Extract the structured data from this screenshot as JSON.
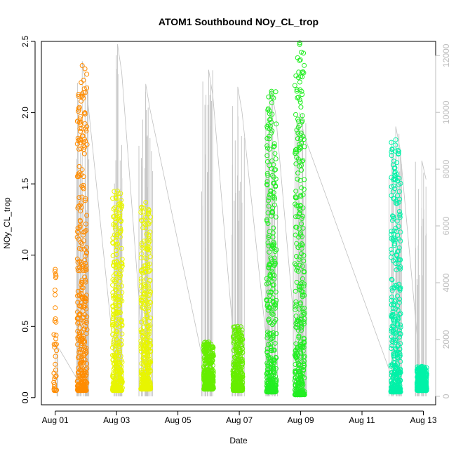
{
  "chart_data": {
    "type": "scatter",
    "title": "ATOM1 Southbound NOy_CL_trop",
    "xlabel": "Date",
    "ylabel": "NOy_CL_trop",
    "x_ticks": [
      "Aug 01",
      "Aug 03",
      "Aug 05",
      "Aug 07",
      "Aug 09",
      "Aug 11",
      "Aug 13"
    ],
    "x_tick_days": [
      1,
      3,
      5,
      7,
      9,
      11,
      13
    ],
    "xlim": [
      0.55,
      13.4
    ],
    "ylim": [
      -0.05,
      2.5
    ],
    "y_ticks": [
      "0.0",
      "0.5",
      "1.0",
      "1.5",
      "2.0",
      "2.5"
    ],
    "y2lim": [
      -300,
      12500
    ],
    "y2_ticks": [
      "0",
      "2000",
      "4000",
      "6000",
      "8000",
      "10000",
      "12000"
    ],
    "grid": false,
    "colors": {
      "path": "#c0c0c0",
      "altitude": "#c8c8c8",
      "axis": "#000000",
      "right_axis": "#bdbdbd"
    },
    "series": [
      {
        "color": "#ff8c00",
        "segments": [
          {
            "x": 1.0,
            "low": 0.05,
            "high": 0.9,
            "thin": true,
            "alt_max": 1800
          },
          {
            "x": 1.88,
            "low": 0.05,
            "high": 2.33,
            "thin": false,
            "alt_max": 11800
          }
        ]
      },
      {
        "color": "#e8f500",
        "segments": [
          {
            "x": 3.03,
            "low": 0.05,
            "high": 1.45,
            "thin": false,
            "alt_max": 12400
          },
          {
            "x": 3.95,
            "low": 0.06,
            "high": 1.37,
            "thin": false,
            "alt_max": 11000
          }
        ]
      },
      {
        "color": "#66ee00",
        "segments": [
          {
            "x": 6.0,
            "low": 0.06,
            "high": 0.39,
            "thin": false,
            "alt_max": 11500
          },
          {
            "x": 6.95,
            "low": 0.05,
            "high": 0.5,
            "thin": false,
            "alt_max": 10900
          }
        ]
      },
      {
        "color": "#22ee22",
        "segments": [
          {
            "x": 8.05,
            "low": 0.04,
            "high": 2.15,
            "thin": false,
            "alt_max": 10800
          },
          {
            "x": 8.97,
            "low": 0.02,
            "high": 2.49,
            "thin": false,
            "alt_max": 10000
          }
        ]
      },
      {
        "color": "#00f2a8",
        "segments": [
          {
            "x": 12.1,
            "low": 0.04,
            "high": 1.81,
            "thin": false,
            "alt_max": 9500
          },
          {
            "x": 12.95,
            "low": 0.05,
            "high": 0.22,
            "thin": false,
            "alt_max": 8300
          }
        ]
      }
    ]
  }
}
